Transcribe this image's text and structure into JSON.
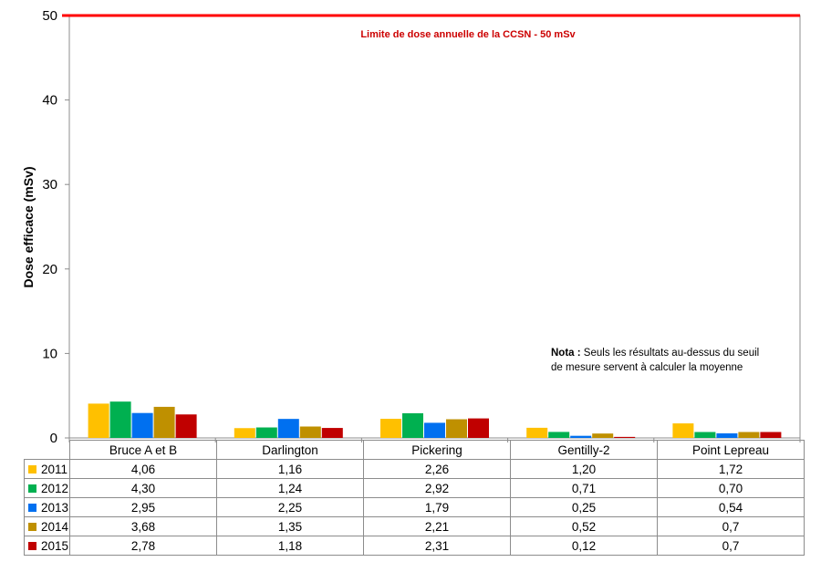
{
  "chart_data": {
    "type": "bar",
    "ylabel": "Dose efficace (mSv)",
    "ylim": [
      0,
      50
    ],
    "yticks": [
      "0",
      "10",
      "20",
      "30",
      "40",
      "50"
    ],
    "grid": false,
    "legend": "data-table-rows",
    "categories": [
      "Bruce A et B",
      "Darlington",
      "Pickering",
      "Gentilly-2",
      "Point Lepreau"
    ],
    "series": [
      {
        "name": "2011",
        "color": "#ffc000",
        "values": [
          4.06,
          1.16,
          2.26,
          1.2,
          1.72
        ],
        "labels": [
          "4,06",
          "1,16",
          "2,26",
          "1,20",
          "1,72"
        ]
      },
      {
        "name": "2012",
        "color": "#00b050",
        "values": [
          4.3,
          1.24,
          2.92,
          0.71,
          0.7
        ],
        "labels": [
          "4,30",
          "1,24",
          "2,92",
          "0,71",
          "0,70"
        ]
      },
      {
        "name": "2013",
        "color": "#0070f0",
        "values": [
          2.95,
          2.25,
          1.79,
          0.25,
          0.54
        ],
        "labels": [
          "2,95",
          "2,25",
          "1,79",
          "0,25",
          "0,54"
        ]
      },
      {
        "name": "2014",
        "color": "#bf9000",
        "values": [
          3.68,
          1.35,
          2.21,
          0.52,
          0.7
        ],
        "labels": [
          "3,68",
          "1,35",
          "2,21",
          "0,52",
          "0,7"
        ]
      },
      {
        "name": "2015",
        "color": "#c00000",
        "values": [
          2.78,
          1.18,
          2.31,
          0.12,
          0.7
        ],
        "labels": [
          "2,78",
          "1,18",
          "2,31",
          "0,12",
          "0,7"
        ]
      }
    ],
    "reference_line": {
      "value": 50,
      "color": "#ff0000",
      "label": "Limite de dose annuelle de la CCSN - 50 mSv"
    },
    "note": {
      "bold": "Nota :",
      "text": "Seuls les résultats au-dessus du seuil de mesure servent à calculer la moyenne"
    }
  }
}
